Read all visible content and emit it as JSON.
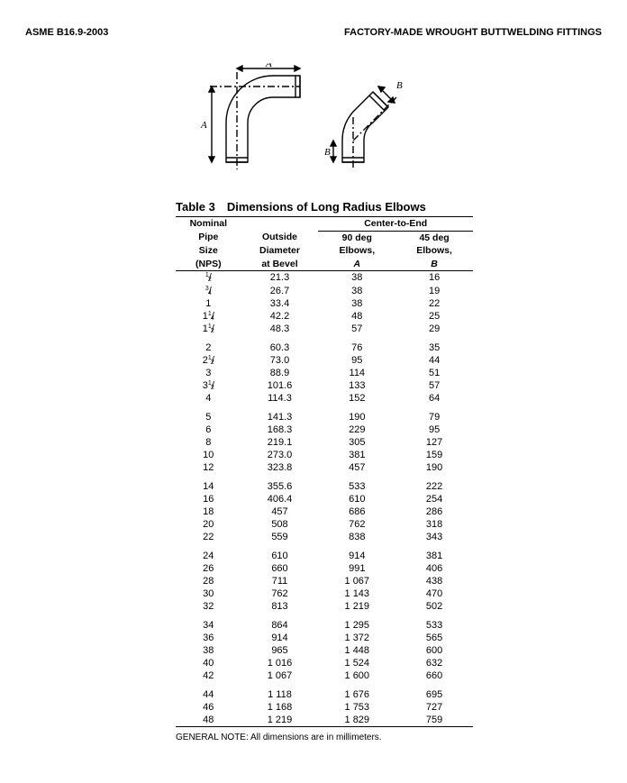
{
  "header": {
    "left": "ASME B16.9-2003",
    "right": "FACTORY-MADE WROUGHT BUTTWELDING FITTINGS"
  },
  "diagram": {
    "labels": {
      "A_top": "A",
      "A_side": "A",
      "B_top": "B",
      "B_side": "B"
    }
  },
  "table": {
    "title": "Table 3 Dimensions of Long Radius Elbows",
    "head": {
      "nps1": "Nominal",
      "nps2": "Pipe",
      "nps3": "Size",
      "nps4": "(NPS)",
      "od1": "Outside",
      "od2": "Diameter",
      "od3": "at Bevel",
      "cte": "Center-to-End",
      "a1": "90 deg",
      "a2": "Elbows,",
      "a3": "A",
      "b1": "45 deg",
      "b2": "Elbows,",
      "b3": "B"
    },
    "groups": [
      [
        {
          "nps_html": "<span class='frac'><sup>1</sup>/<sub>2</sub></span>",
          "od": "21.3",
          "a": "38",
          "b": "16"
        },
        {
          "nps_html": "<span class='frac'><sup>3</sup>/<sub>4</sub></span>",
          "od": "26.7",
          "a": "38",
          "b": "19"
        },
        {
          "nps_html": "1",
          "od": "33.4",
          "a": "38",
          "b": "22"
        },
        {
          "nps_html": "1<span class='frac'><sup>1</sup>/<sub>4</sub></span>",
          "od": "42.2",
          "a": "48",
          "b": "25"
        },
        {
          "nps_html": "1<span class='frac'><sup>1</sup>/<sub>2</sub></span>",
          "od": "48.3",
          "a": "57",
          "b": "29"
        }
      ],
      [
        {
          "nps_html": "2",
          "od": "60.3",
          "a": "76",
          "b": "35"
        },
        {
          "nps_html": "2<span class='frac'><sup>1</sup>/<sub>2</sub></span>",
          "od": "73.0",
          "a": "95",
          "b": "44"
        },
        {
          "nps_html": "3",
          "od": "88.9",
          "a": "114",
          "b": "51"
        },
        {
          "nps_html": "3<span class='frac'><sup>1</sup>/<sub>2</sub></span>",
          "od": "101.6",
          "a": "133",
          "b": "57"
        },
        {
          "nps_html": "4",
          "od": "114.3",
          "a": "152",
          "b": "64"
        }
      ],
      [
        {
          "nps_html": "5",
          "od": "141.3",
          "a": "190",
          "b": "79"
        },
        {
          "nps_html": "6",
          "od": "168.3",
          "a": "229",
          "b": "95"
        },
        {
          "nps_html": "8",
          "od": "219.1",
          "a": "305",
          "b": "127"
        },
        {
          "nps_html": "10",
          "od": "273.0",
          "a": "381",
          "b": "159"
        },
        {
          "nps_html": "12",
          "od": "323.8",
          "a": "457",
          "b": "190"
        }
      ],
      [
        {
          "nps_html": "14",
          "od": "355.6",
          "a": "533",
          "b": "222"
        },
        {
          "nps_html": "16",
          "od": "406.4",
          "a": "610",
          "b": "254"
        },
        {
          "nps_html": "18",
          "od": "457",
          "a": "686",
          "b": "286"
        },
        {
          "nps_html": "20",
          "od": "508",
          "a": "762",
          "b": "318"
        },
        {
          "nps_html": "22",
          "od": "559",
          "a": "838",
          "b": "343"
        }
      ],
      [
        {
          "nps_html": "24",
          "od": "610",
          "a": "914",
          "b": "381"
        },
        {
          "nps_html": "26",
          "od": "660",
          "a": "991",
          "b": "406"
        },
        {
          "nps_html": "28",
          "od": "711",
          "a": "1 067",
          "b": "438"
        },
        {
          "nps_html": "30",
          "od": "762",
          "a": "1 143",
          "b": "470"
        },
        {
          "nps_html": "32",
          "od": "813",
          "a": "1 219",
          "b": "502"
        }
      ],
      [
        {
          "nps_html": "34",
          "od": "864",
          "a": "1 295",
          "b": "533"
        },
        {
          "nps_html": "36",
          "od": "914",
          "a": "1 372",
          "b": "565"
        },
        {
          "nps_html": "38",
          "od": "965",
          "a": "1 448",
          "b": "600"
        },
        {
          "nps_html": "40",
          "od": "1 016",
          "a": "1 524",
          "b": "632"
        },
        {
          "nps_html": "42",
          "od": "1 067",
          "a": "1 600",
          "b": "660"
        }
      ],
      [
        {
          "nps_html": "44",
          "od": "1 118",
          "a": "1 676",
          "b": "695"
        },
        {
          "nps_html": "46",
          "od": "1 168",
          "a": "1 753",
          "b": "727"
        },
        {
          "nps_html": "48",
          "od": "1 219",
          "a": "1 829",
          "b": "759"
        }
      ]
    ],
    "note": "GENERAL NOTE: All dimensions are in millimeters."
  },
  "style": {
    "line_thin": 1,
    "line_thick": 1.5,
    "font_body": 11,
    "font_head": 10.5,
    "font_title": 13,
    "font_note": 10,
    "color_text": "#000000",
    "color_bg": "#ffffff"
  }
}
